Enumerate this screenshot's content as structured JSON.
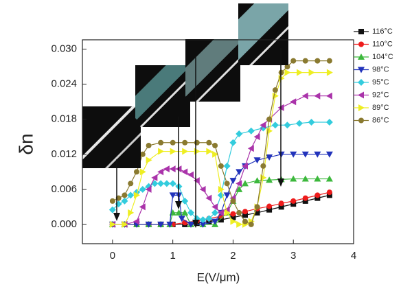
{
  "chart_data": {
    "type": "line",
    "x_label": "E(V/μm)",
    "y_label": "δn",
    "xlim": [
      -0.5,
      4.0
    ],
    "xticks": [
      0,
      1,
      2,
      3,
      4
    ],
    "ylim": [
      -0.0033,
      0.0316
    ],
    "yticks": [
      {
        "value": 0,
        "label": "0.000"
      },
      {
        "value": 0.006,
        "label": "0.006"
      },
      {
        "value": 0.012,
        "label": "0.012"
      },
      {
        "value": 0.018,
        "label": "0.018"
      },
      {
        "value": 0.024,
        "label": "0.024"
      },
      {
        "value": 0.03,
        "label": "0.030"
      }
    ],
    "series": [
      {
        "name": "116°C",
        "color": "#111111",
        "marker": "square",
        "x": [
          0,
          0.2,
          0.4,
          0.6,
          0.8,
          1.0,
          1.2,
          1.4,
          1.6,
          1.8,
          2.0,
          2.2,
          2.4,
          2.6,
          2.8,
          3.0,
          3.2,
          3.4,
          3.6
        ],
        "values": [
          0,
          0,
          0,
          0,
          0,
          0,
          0,
          0.0002,
          0.0005,
          0.0008,
          0.0012,
          0.0016,
          0.002,
          0.0025,
          0.003,
          0.0035,
          0.004,
          0.0045,
          0.005
        ]
      },
      {
        "name": "110°C",
        "color": "#ee1c1c",
        "marker": "circle",
        "x": [
          0,
          0.2,
          0.4,
          0.6,
          0.8,
          1.0,
          1.2,
          1.4,
          1.6,
          1.8,
          2.0,
          2.2,
          2.4,
          2.6,
          2.8,
          3.0,
          3.2,
          3.4,
          3.6
        ],
        "values": [
          0,
          0,
          0,
          0,
          0,
          0,
          0.0003,
          0.0006,
          0.001,
          0.0014,
          0.0018,
          0.0022,
          0.0027,
          0.0031,
          0.0036,
          0.004,
          0.0045,
          0.005,
          0.0055
        ]
      },
      {
        "name": "104°C",
        "color": "#3cb83c",
        "marker": "tri-up",
        "x": [
          0,
          0.2,
          0.4,
          0.6,
          0.8,
          0.95,
          1.0,
          1.1,
          1.2,
          1.3,
          1.5,
          1.7,
          1.9,
          2.0,
          2.1,
          2.2,
          2.4,
          2.6,
          2.8,
          3.0,
          3.2,
          3.4,
          3.6
        ],
        "values": [
          0,
          0,
          0,
          0,
          0,
          0,
          0.002,
          0.002,
          0.002,
          0,
          0,
          0,
          0.002,
          0.004,
          0.006,
          0.007,
          0.0075,
          0.0076,
          0.0077,
          0.0078,
          0.0078,
          0.0078,
          0.0078
        ]
      },
      {
        "name": "98°C",
        "color": "#2233bb",
        "marker": "tri-down",
        "x": [
          0,
          0.2,
          0.4,
          0.6,
          0.8,
          0.95,
          1.0,
          1.1,
          1.15,
          1.3,
          1.5,
          1.7,
          1.8,
          1.9,
          2.0,
          2.1,
          2.2,
          2.4,
          2.6,
          2.8,
          3.0,
          3.2,
          3.4,
          3.6
        ],
        "values": [
          0,
          0,
          0,
          0,
          0,
          0,
          0.005,
          0.005,
          0.001,
          0,
          0,
          0.0005,
          0.002,
          0.005,
          0.0075,
          0.009,
          0.01,
          0.011,
          0.0115,
          0.012,
          0.012,
          0.012,
          0.012,
          0.012
        ]
      },
      {
        "name": "95°C",
        "color": "#33ccdd",
        "marker": "diamond",
        "x": [
          0,
          0.1,
          0.2,
          0.3,
          0.4,
          0.5,
          0.6,
          0.7,
          0.8,
          0.9,
          1.0,
          1.1,
          1.2,
          1.3,
          1.4,
          1.5,
          1.6,
          1.7,
          1.8,
          1.9,
          2.0,
          2.1,
          2.3,
          2.5,
          2.7,
          2.9,
          3.1,
          3.3,
          3.6
        ],
        "values": [
          0.0025,
          0.0035,
          0.004,
          0.005,
          0.0055,
          0.006,
          0.0065,
          0.007,
          0.007,
          0.007,
          0.007,
          0.0065,
          0.004,
          0.002,
          0.001,
          0.0008,
          0.001,
          0.002,
          0.005,
          0.01,
          0.014,
          0.0155,
          0.016,
          0.0165,
          0.017,
          0.017,
          0.0173,
          0.0175,
          0.0175
        ]
      },
      {
        "name": "92°C",
        "color": "#aa33aa",
        "marker": "tri-left",
        "x": [
          0,
          0.2,
          0.4,
          0.5,
          0.6,
          0.7,
          0.8,
          0.9,
          1.0,
          1.1,
          1.2,
          1.3,
          1.4,
          1.5,
          1.6,
          1.7,
          1.8,
          1.9,
          2.0,
          2.1,
          2.2,
          2.3,
          2.4,
          2.5,
          2.6,
          2.8,
          3.0,
          3.2,
          3.4,
          3.6
        ],
        "values": [
          0,
          0,
          0.0005,
          0.003,
          0.006,
          0.008,
          0.009,
          0.0095,
          0.0095,
          0.0095,
          0.009,
          0.0085,
          0.0075,
          0.006,
          0.0045,
          0.003,
          0.002,
          0.0025,
          0.0045,
          0.007,
          0.01,
          0.013,
          0.015,
          0.017,
          0.018,
          0.02,
          0.021,
          0.022,
          0.022,
          0.022
        ]
      },
      {
        "name": "89°C",
        "color": "#eeee22",
        "marker": "tri-right",
        "x": [
          0,
          0.2,
          0.3,
          0.4,
          0.5,
          0.6,
          0.8,
          1.0,
          1.2,
          1.4,
          1.6,
          1.7,
          1.8,
          1.9,
          2.0,
          2.1,
          2.2,
          2.3,
          2.4,
          2.5,
          2.6,
          2.7,
          2.8,
          2.9,
          3.1,
          3.3,
          3.6
        ],
        "values": [
          0,
          0,
          0.002,
          0.005,
          0.009,
          0.011,
          0.0125,
          0.0125,
          0.0125,
          0.0125,
          0.0125,
          0.012,
          0.006,
          0.002,
          0.0005,
          0,
          0,
          0.0005,
          0.003,
          0.008,
          0.016,
          0.022,
          0.025,
          0.026,
          0.026,
          0.026,
          0.026
        ]
      },
      {
        "name": "86°C",
        "color": "#8a7a30",
        "marker": "circle",
        "x": [
          0,
          0.1,
          0.2,
          0.3,
          0.4,
          0.5,
          0.6,
          0.8,
          1.0,
          1.2,
          1.4,
          1.6,
          1.7,
          1.8,
          1.9,
          2.0,
          2.1,
          2.2,
          2.3,
          2.4,
          2.5,
          2.6,
          2.7,
          2.8,
          2.9,
          3.0,
          3.2,
          3.4,
          3.6
        ],
        "values": [
          0.004,
          0.0045,
          0.005,
          0.007,
          0.009,
          0.012,
          0.0135,
          0.014,
          0.014,
          0.014,
          0.014,
          0.014,
          0.0135,
          0.01,
          0.007,
          0.004,
          0.002,
          0.0005,
          0,
          0.003,
          0.01,
          0.018,
          0.023,
          0.026,
          0.027,
          0.028,
          0.028,
          0.028,
          0.028
        ]
      }
    ]
  }
}
